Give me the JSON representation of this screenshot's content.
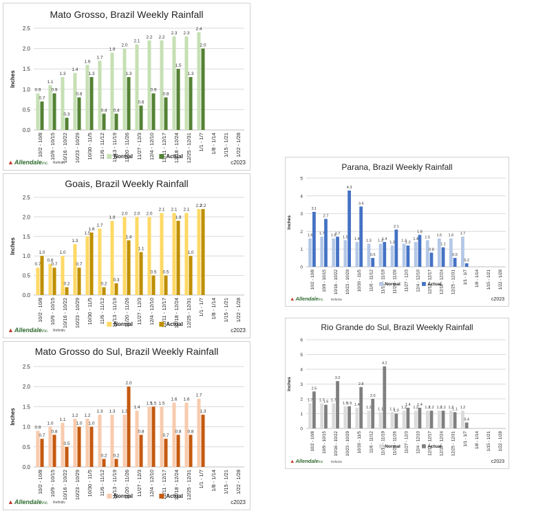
{
  "logo_text": "Allendale",
  "logo_suffix": "inc.",
  "source_text": "Refinitiv",
  "copyright": "c2023",
  "colors": {
    "mato_grosso": {
      "normal": "#c6e0b4",
      "actual": "#548235"
    },
    "goais": {
      "normal": "#ffd966",
      "actual": "#bf8f00"
    },
    "mato_grosso_do_sul": {
      "normal": "#f8cbad",
      "actual": "#c55a11"
    },
    "parana": {
      "normal": "#b4c7e7",
      "actual": "#4472c4"
    },
    "rio_grande_do_sul": {
      "normal": "#dbdbdb",
      "actual": "#7f7f7f"
    }
  },
  "chart_data": [
    {
      "id": "mato_grosso",
      "type": "bar",
      "title": "Mato Grosso, Brazil Weekly Rainfall",
      "ylabel": "Inches",
      "ylim": [
        0,
        2.5
      ],
      "yticks": [
        "0.0",
        "0.5",
        "1.0",
        "1.5",
        "2.0",
        "2.5"
      ],
      "categories": [
        "10/2 - 10/8",
        "10/9 - 10/15",
        "10/16 - 10/22",
        "10/23 - 10/29",
        "10/30 - 11/5",
        "11/6 - 11/12",
        "11/13 - 11/19",
        "11/20 - 11/26",
        "11/27 - 12/3",
        "12/4 - 12/10",
        "12/11 - 12/17",
        "12/18 - 12/24",
        "12/25 - 12/31",
        "1/1 - 1/7",
        "1/8 - 1/14",
        "1/15 - 1/21",
        "1/22 - 1/28"
      ],
      "series": [
        {
          "name": "Normal",
          "values": [
            0.9,
            1.1,
            1.3,
            1.4,
            1.6,
            1.7,
            1.9,
            2.0,
            2.1,
            2.2,
            2.2,
            2.3,
            2.3,
            2.4,
            null,
            null,
            null
          ],
          "labels": [
            "0.9",
            "1.1",
            "1.3",
            "1.4",
            "1.6",
            "1.7",
            "1.9",
            "2.0",
            "2.1",
            "2.2",
            "2.2",
            "2.3",
            "2.3",
            "2.4",
            "",
            "",
            ""
          ]
        },
        {
          "name": "Actual",
          "values": [
            0.7,
            0.9,
            0.3,
            0.8,
            1.3,
            0.4,
            0.4,
            1.3,
            0.6,
            0.9,
            0.8,
            1.5,
            1.3,
            2.0,
            null,
            null,
            null
          ],
          "labels": [
            "0.7",
            "0.9",
            "0.3",
            "0.8",
            "1.3",
            "0.4",
            "0.4",
            "1.3",
            "0.6",
            "0.9",
            "0.8",
            "1.5",
            "1.3",
            "2.0",
            "",
            "",
            ""
          ]
        }
      ]
    },
    {
      "id": "goais",
      "type": "bar",
      "title": "Goais, Brazil Weekly Rainfall",
      "ylabel": "Inches",
      "ylim": [
        0,
        2.5
      ],
      "yticks": [
        "0.0",
        "0.5",
        "1.0",
        "1.5",
        "2.0",
        "2.5"
      ],
      "categories": [
        "10/2 - 10/8",
        "10/9 - 10/15",
        "10/16 - 10/22",
        "10/23 - 10/29",
        "10/30 - 11/5",
        "11/6 - 11/12",
        "11/13 - 11/19",
        "11/20 - 11/26",
        "11/27 - 12/3",
        "12/4 - 12/10",
        "12/11 - 12/17",
        "12/18 - 12/24",
        "12/25 - 12/31",
        "1/1 - 1/7",
        "1/8 - 1/14",
        "1/15 - 1/21",
        "1/22 - 1/28"
      ],
      "series": [
        {
          "name": "Normal",
          "values": [
            0.7,
            0.8,
            1.0,
            1.3,
            1.5,
            1.7,
            1.9,
            2.0,
            2.0,
            2.0,
            2.1,
            2.1,
            2.1,
            2.2,
            null,
            null,
            null
          ],
          "labels": [
            "0.7",
            "0.8",
            "1.0",
            "1.3",
            "1.5",
            "1.7",
            "1.9",
            "2.0",
            "2.0",
            "2.0",
            "2.1",
            "2.1",
            "2.1",
            "2.2",
            "",
            "",
            ""
          ]
        },
        {
          "name": "Actual",
          "values": [
            1.0,
            0.7,
            0.2,
            0.7,
            1.6,
            0.2,
            0.3,
            1.4,
            1.1,
            0.5,
            0.5,
            1.9,
            1.0,
            2.2,
            null,
            null,
            null
          ],
          "labels": [
            "1.0",
            "0.7",
            "0.2",
            "0.7",
            "1.6",
            "0.2",
            "0.3",
            "1.4",
            "1.1",
            "0.5",
            "0.5",
            "1.9",
            "1.0",
            "2.2",
            "",
            "",
            ""
          ]
        }
      ]
    },
    {
      "id": "mato_grosso_do_sul",
      "type": "bar",
      "title": "Mato Grosso do Sul, Brazil Weekly Rainfall",
      "ylabel": "Inches",
      "ylim": [
        0,
        2.5
      ],
      "yticks": [
        "0.0",
        "0.5",
        "1.0",
        "1.5",
        "2.0",
        "2.5"
      ],
      "categories": [
        "10/2 - 10/8",
        "10/9 - 10/15",
        "10/16 - 10/22",
        "10/23 - 10/29",
        "10/30 - 11/5",
        "11/6 - 11/12",
        "11/13 - 11/19",
        "11/20 - 11/26",
        "11/27 - 12/3",
        "12/4 - 12/10",
        "12/11 - 12/17",
        "12/18 - 12/24",
        "12/25 - 12/31",
        "1/1 - 1/7",
        "1/8 - 1/14",
        "1/15 - 1/21",
        "1/22 - 1/28"
      ],
      "series": [
        {
          "name": "Normal",
          "values": [
            0.9,
            1.0,
            1.1,
            1.2,
            1.2,
            1.3,
            1.3,
            1.3,
            1.4,
            1.5,
            1.5,
            1.6,
            1.6,
            1.7,
            null,
            null,
            null
          ],
          "labels": [
            "0.9",
            "1.0",
            "1.1",
            "1.2",
            "1.2",
            "1.3",
            "1.3",
            "1.3",
            "1.4",
            "1.5",
            "1.5",
            "1.6",
            "1.6",
            "1.7",
            "",
            "",
            ""
          ]
        },
        {
          "name": "Actual",
          "values": [
            0.7,
            0.8,
            0.5,
            1.0,
            1.0,
            0.2,
            0.2,
            2.0,
            0.8,
            1.5,
            0.7,
            0.8,
            0.8,
            1.3,
            null,
            null,
            null
          ],
          "labels": [
            "0.7",
            "0.8",
            "0.5",
            "1.0",
            "1.0",
            "0.2",
            "0.2",
            "2.0",
            "0.8",
            "1.5",
            "0.7",
            "0.8",
            "0.8",
            "1.3",
            "",
            "",
            ""
          ]
        }
      ]
    },
    {
      "id": "parana",
      "type": "bar",
      "title": "Parana, Brazil Weekly Rainfall",
      "ylabel": "Inches",
      "ylim": [
        0,
        5
      ],
      "yticks": [
        "0",
        "1",
        "2",
        "3",
        "4",
        "5"
      ],
      "categories": [
        "10/2 - 10/8",
        "10/9 - 10/15",
        "10/16 - 10/22",
        "10/23 - 10/29",
        "10/30 - 11/5",
        "11/6 - 11/12",
        "11/13 - 11/19",
        "11/20 - 11/26",
        "11/27 - 12/3",
        "12/4 - 12/10",
        "12/11 - 12/17",
        "12/18 - 12/24",
        "12/25 - 12/31",
        "1/1 - 1/7",
        "1/8 - 1/14",
        "1/15 - 1/21",
        "1/22 - 1/28"
      ],
      "series": [
        {
          "name": "Normal",
          "values": [
            1.6,
            1.7,
            1.6,
            1.5,
            1.4,
            1.3,
            1.3,
            1.2,
            1.3,
            1.4,
            1.5,
            1.6,
            1.6,
            1.7,
            null,
            null,
            null
          ],
          "labels": [
            "1.6",
            "1.7",
            "1.6",
            "1.5",
            "1.4",
            "1.3",
            "1.3",
            "1.2",
            "1.3",
            "1.4",
            "1.5",
            "1.6",
            "1.6",
            "1.7",
            "",
            "",
            ""
          ]
        },
        {
          "name": "Actual",
          "values": [
            3.1,
            2.7,
            1.7,
            4.3,
            3.4,
            0.5,
            1.4,
            2.1,
            1.2,
            1.8,
            0.8,
            1.1,
            0.5,
            0.2,
            null,
            null,
            null
          ],
          "labels": [
            "3.1",
            "2.7",
            "1.7",
            "4.3",
            "3.4",
            "0.5",
            "1.4",
            "2.1",
            "1.2",
            "1.8",
            "0.8",
            "1.1",
            "0.5",
            "0.2",
            "",
            "",
            ""
          ]
        }
      ]
    },
    {
      "id": "rio_grande_do_sul",
      "type": "bar",
      "title": "Rio Grande do Sul, Brazil Weekly Rainfall",
      "ylabel": "Inches",
      "ylim": [
        0,
        6
      ],
      "yticks": [
        "0",
        "1",
        "2",
        "3",
        "4",
        "5",
        "6"
      ],
      "categories": [
        "10/2 - 10/8",
        "10/9 - 10/15",
        "10/16 - 10/22",
        "10/23 - 10/29",
        "10/30 - 11/5",
        "11/6 - 11/12",
        "11/13 - 11/19",
        "11/20 - 11/26",
        "11/27 - 12/3",
        "12/4 - 12/10",
        "12/11 - 12/17",
        "12/18 - 12/24",
        "12/25 - 12/31",
        "1/1 - 1/7",
        "1/8 - 1/14",
        "1/15 - 1/21",
        "1/22 - 1/28"
      ],
      "series": [
        {
          "name": "Normal",
          "values": [
            1.7,
            1.7,
            1.7,
            1.5,
            1.4,
            1.2,
            1.1,
            1.1,
            1.2,
            1.2,
            1.2,
            1.2,
            1.2,
            1.2,
            null,
            null,
            null
          ],
          "labels": [
            "1.7",
            "1.7",
            "1.7",
            "1.5",
            "1.4",
            "1.2",
            "1.1",
            "1.1",
            "1.2",
            "1.2",
            "1.2",
            "1.2",
            "1.2",
            "1.2",
            "",
            "",
            ""
          ]
        },
        {
          "name": "Actual",
          "values": [
            2.5,
            1.6,
            3.2,
            1.5,
            2.8,
            2.0,
            4.2,
            1.0,
            1.4,
            1.4,
            1.2,
            1.2,
            1.1,
            0.4,
            null,
            null,
            null
          ],
          "labels": [
            "2.5",
            "1.6",
            "3.2",
            "1.5",
            "2.8",
            "2.0",
            "4.2",
            "1.0",
            "1.4",
            "1.4",
            "1.2",
            "1.2",
            "1.1",
            "0.4",
            "",
            "",
            ""
          ]
        }
      ]
    }
  ]
}
